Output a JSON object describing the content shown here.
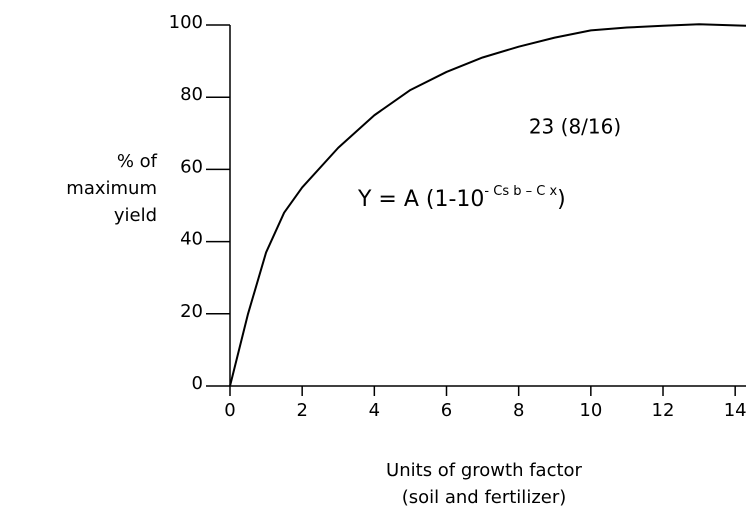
{
  "chart_data": {
    "type": "line",
    "x": [
      0,
      0.5,
      1,
      1.5,
      2,
      3,
      4,
      5,
      6,
      7,
      8,
      9,
      10,
      11,
      12,
      13,
      14.3
    ],
    "values": [
      0,
      20,
      37,
      48,
      55,
      66,
      75,
      82,
      87,
      91,
      94,
      96.5,
      98.5,
      99.3,
      99.8,
      100.2,
      99.8
    ],
    "color": "#000000",
    "xlim": [
      0,
      14.3
    ],
    "ylim": [
      0,
      100
    ],
    "xticks": [
      0,
      2,
      4,
      6,
      8,
      10,
      12,
      14
    ],
    "yticks": [
      0,
      20,
      40,
      60,
      80,
      100
    ],
    "y_label": [
      "% of",
      "maximum",
      "yield"
    ],
    "x_label": [
      "Units of growth factor",
      "(soil and fertilizer)"
    ],
    "annotations": [
      "23 (8/16)"
    ],
    "equation": {
      "base": "Y = A (1-10",
      "exponent": "- Cs b – C x",
      "close": ")"
    }
  }
}
